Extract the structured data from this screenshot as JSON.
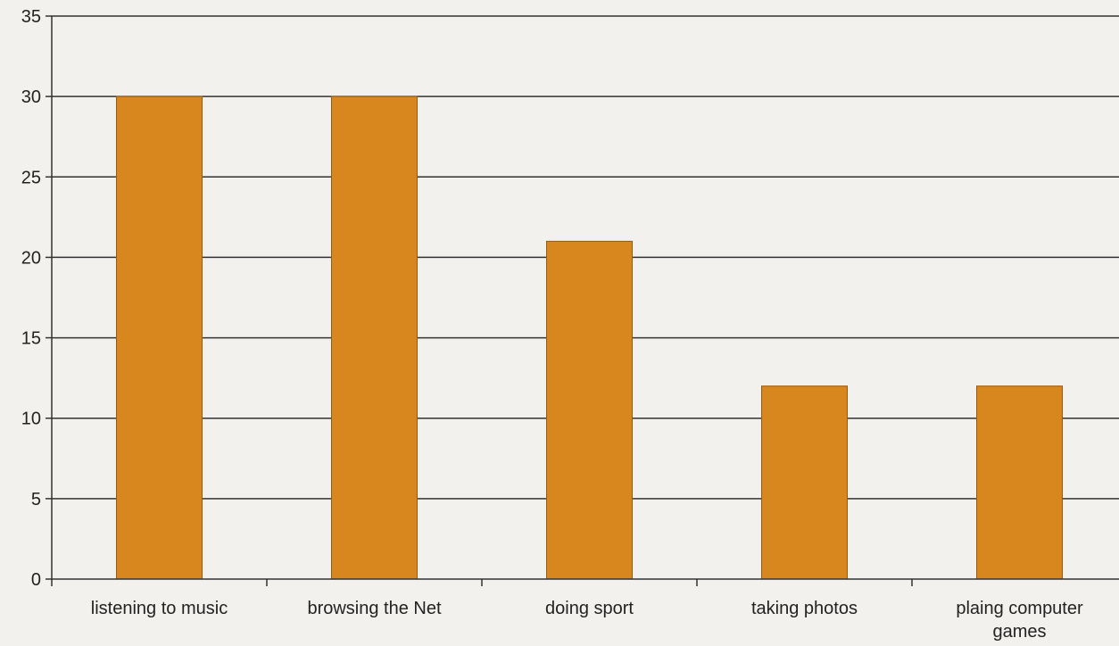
{
  "chart_data": {
    "type": "bar",
    "categories": [
      [
        "listening to music"
      ],
      [
        "browsing the Net"
      ],
      [
        "doing sport"
      ],
      [
        "taking photos"
      ],
      [
        "plaing computer",
        "games"
      ]
    ],
    "values": [
      30,
      30,
      21,
      12,
      12
    ],
    "ylim": [
      0,
      35
    ],
    "yticks": [
      0,
      5,
      10,
      15,
      20,
      25,
      30,
      35
    ],
    "grid": true,
    "legend": "none",
    "title": "",
    "xlabel": "",
    "ylabel": "",
    "colors": {
      "bar": "#d8861e",
      "grid": "#333333",
      "background": "#f2f1ee"
    }
  }
}
